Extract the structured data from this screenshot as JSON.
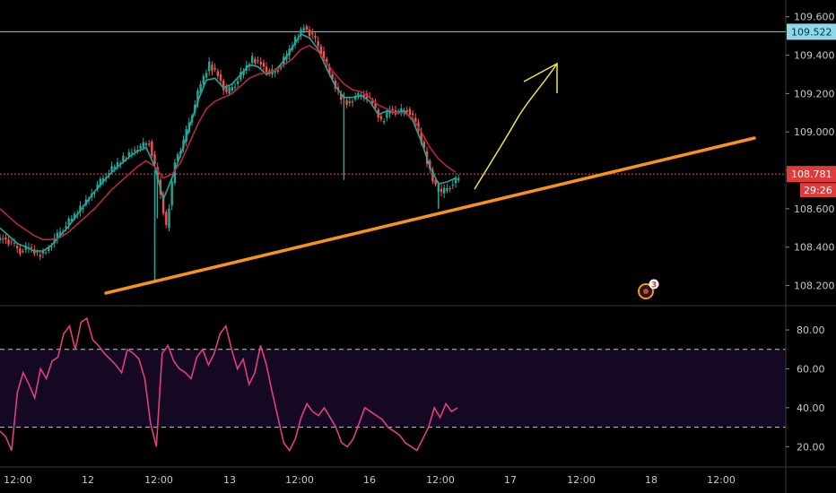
{
  "chart_data": [
    {
      "type": "candlestick",
      "ylim": [
        108.1,
        109.65
      ],
      "y_ticks": [
        "109.600",
        "109.400",
        "109.200",
        "109.000",
        "108.800",
        "108.600",
        "108.400",
        "108.200"
      ],
      "x_ticks": [
        "12:00",
        "12",
        "12:00",
        "13",
        "12:00",
        "16",
        "12:00",
        "17",
        "12:00",
        "18",
        "12:00"
      ],
      "price_lines": [
        {
          "label": "109.522",
          "value": 109.522,
          "color": "#7fd6e6",
          "style": "solid"
        },
        {
          "label": "108.781",
          "value": 108.781,
          "color": "#e05050",
          "style": "dotted"
        }
      ],
      "countdown": "29:26",
      "alert_badge": "3",
      "series": [
        {
          "role": "close",
          "values": [
            108.45,
            108.42,
            108.38,
            108.4,
            108.36,
            108.38,
            108.44,
            108.5,
            108.55,
            108.6,
            108.66,
            108.72,
            108.78,
            108.82,
            108.86,
            108.9,
            108.92,
            108.95,
            108.75,
            108.5,
            108.85,
            108.95,
            109.1,
            109.25,
            109.35,
            109.3,
            109.2,
            109.25,
            109.32,
            109.38,
            109.36,
            109.3,
            109.33,
            109.4,
            109.48,
            109.55,
            109.5,
            109.42,
            109.3,
            109.2,
            109.15,
            109.18,
            109.2,
            109.15,
            109.05,
            109.12,
            109.1,
            109.12,
            109.05,
            108.9,
            108.75,
            108.68,
            108.72,
            108.76
          ]
        },
        {
          "role": "fast_ma",
          "values": [
            108.5,
            108.46,
            108.42,
            108.4,
            108.38,
            108.38,
            108.41,
            108.46,
            108.51,
            108.57,
            108.63,
            108.69,
            108.74,
            108.79,
            108.83,
            108.87,
            108.9,
            108.92,
            108.82,
            108.65,
            108.76,
            108.88,
            109.02,
            109.16,
            109.27,
            109.28,
            109.23,
            109.25,
            109.3,
            109.35,
            109.34,
            109.3,
            109.32,
            109.37,
            109.44,
            109.51,
            109.49,
            109.43,
            109.33,
            109.24,
            109.18,
            109.18,
            109.19,
            109.16,
            109.09,
            109.11,
            109.1,
            109.11,
            109.06,
            108.95,
            108.82,
            108.73,
            108.74,
            108.76
          ]
        },
        {
          "role": "slow_ma",
          "values": [
            108.6,
            108.56,
            108.52,
            108.49,
            108.46,
            108.44,
            108.44,
            108.45,
            108.48,
            108.52,
            108.56,
            108.6,
            108.65,
            108.7,
            108.74,
            108.78,
            108.82,
            108.85,
            108.82,
            108.76,
            108.78,
            108.84,
            108.94,
            109.04,
            109.12,
            109.16,
            109.18,
            109.2,
            109.24,
            109.28,
            109.3,
            109.31,
            109.32,
            109.35,
            109.38,
            109.43,
            109.45,
            109.42,
            109.36,
            109.3,
            109.25,
            109.22,
            109.21,
            109.18,
            109.14,
            109.12,
            109.1,
            109.1,
            109.07,
            109.0,
            108.92,
            108.86,
            108.82,
            108.79
          ]
        }
      ],
      "annotations": [
        {
          "kind": "trendline",
          "color": "#f7931a",
          "from": [
            -0.5,
            108.18
          ],
          "to": [
            5.1,
            108.99
          ]
        },
        {
          "kind": "arrow",
          "color": "#f4e542"
        }
      ]
    },
    {
      "type": "line",
      "ylim": [
        10,
        92
      ],
      "y_ticks": [
        "80.00",
        "60.00",
        "40.00",
        "20.00"
      ],
      "band": [
        30,
        70
      ],
      "series": [
        {
          "role": "oscillator",
          "color": "#e0407a",
          "values": [
            28,
            25,
            18,
            48,
            58,
            52,
            45,
            60,
            55,
            64,
            66,
            78,
            82,
            70,
            84,
            86,
            75,
            72,
            68,
            65,
            62,
            58,
            70,
            68,
            65,
            55,
            32,
            20,
            68,
            72,
            64,
            60,
            58,
            55,
            66,
            70,
            62,
            68,
            78,
            82,
            70,
            60,
            65,
            52,
            58,
            72,
            62,
            48,
            35,
            22,
            18,
            24,
            35,
            42,
            38,
            36,
            40,
            35,
            30,
            22,
            20,
            24,
            32,
            40,
            38,
            36,
            34,
            30,
            28,
            26,
            22,
            20,
            18,
            24,
            30,
            40,
            35,
            42,
            38,
            40
          ]
        }
      ]
    }
  ]
}
